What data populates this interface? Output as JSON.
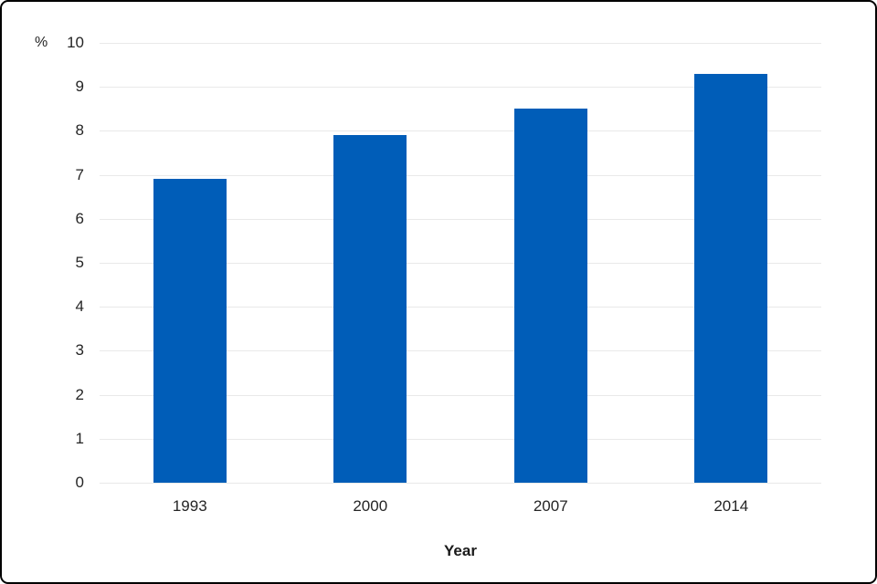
{
  "chart_data": {
    "type": "bar",
    "categories": [
      "1993",
      "2000",
      "2007",
      "2014"
    ],
    "values": [
      6.9,
      7.9,
      8.5,
      9.3
    ],
    "title": "",
    "xlabel": "Year",
    "ylabel": "%",
    "ylim": [
      0,
      10
    ],
    "ytick_step": 1,
    "yticks": [
      0,
      1,
      2,
      3,
      4,
      5,
      6,
      7,
      8,
      9,
      10
    ],
    "grid": true,
    "legend_position": "none",
    "bar_color": "#005DB8",
    "gridline_color": "#e9e9e9",
    "text_color": "#252525"
  }
}
